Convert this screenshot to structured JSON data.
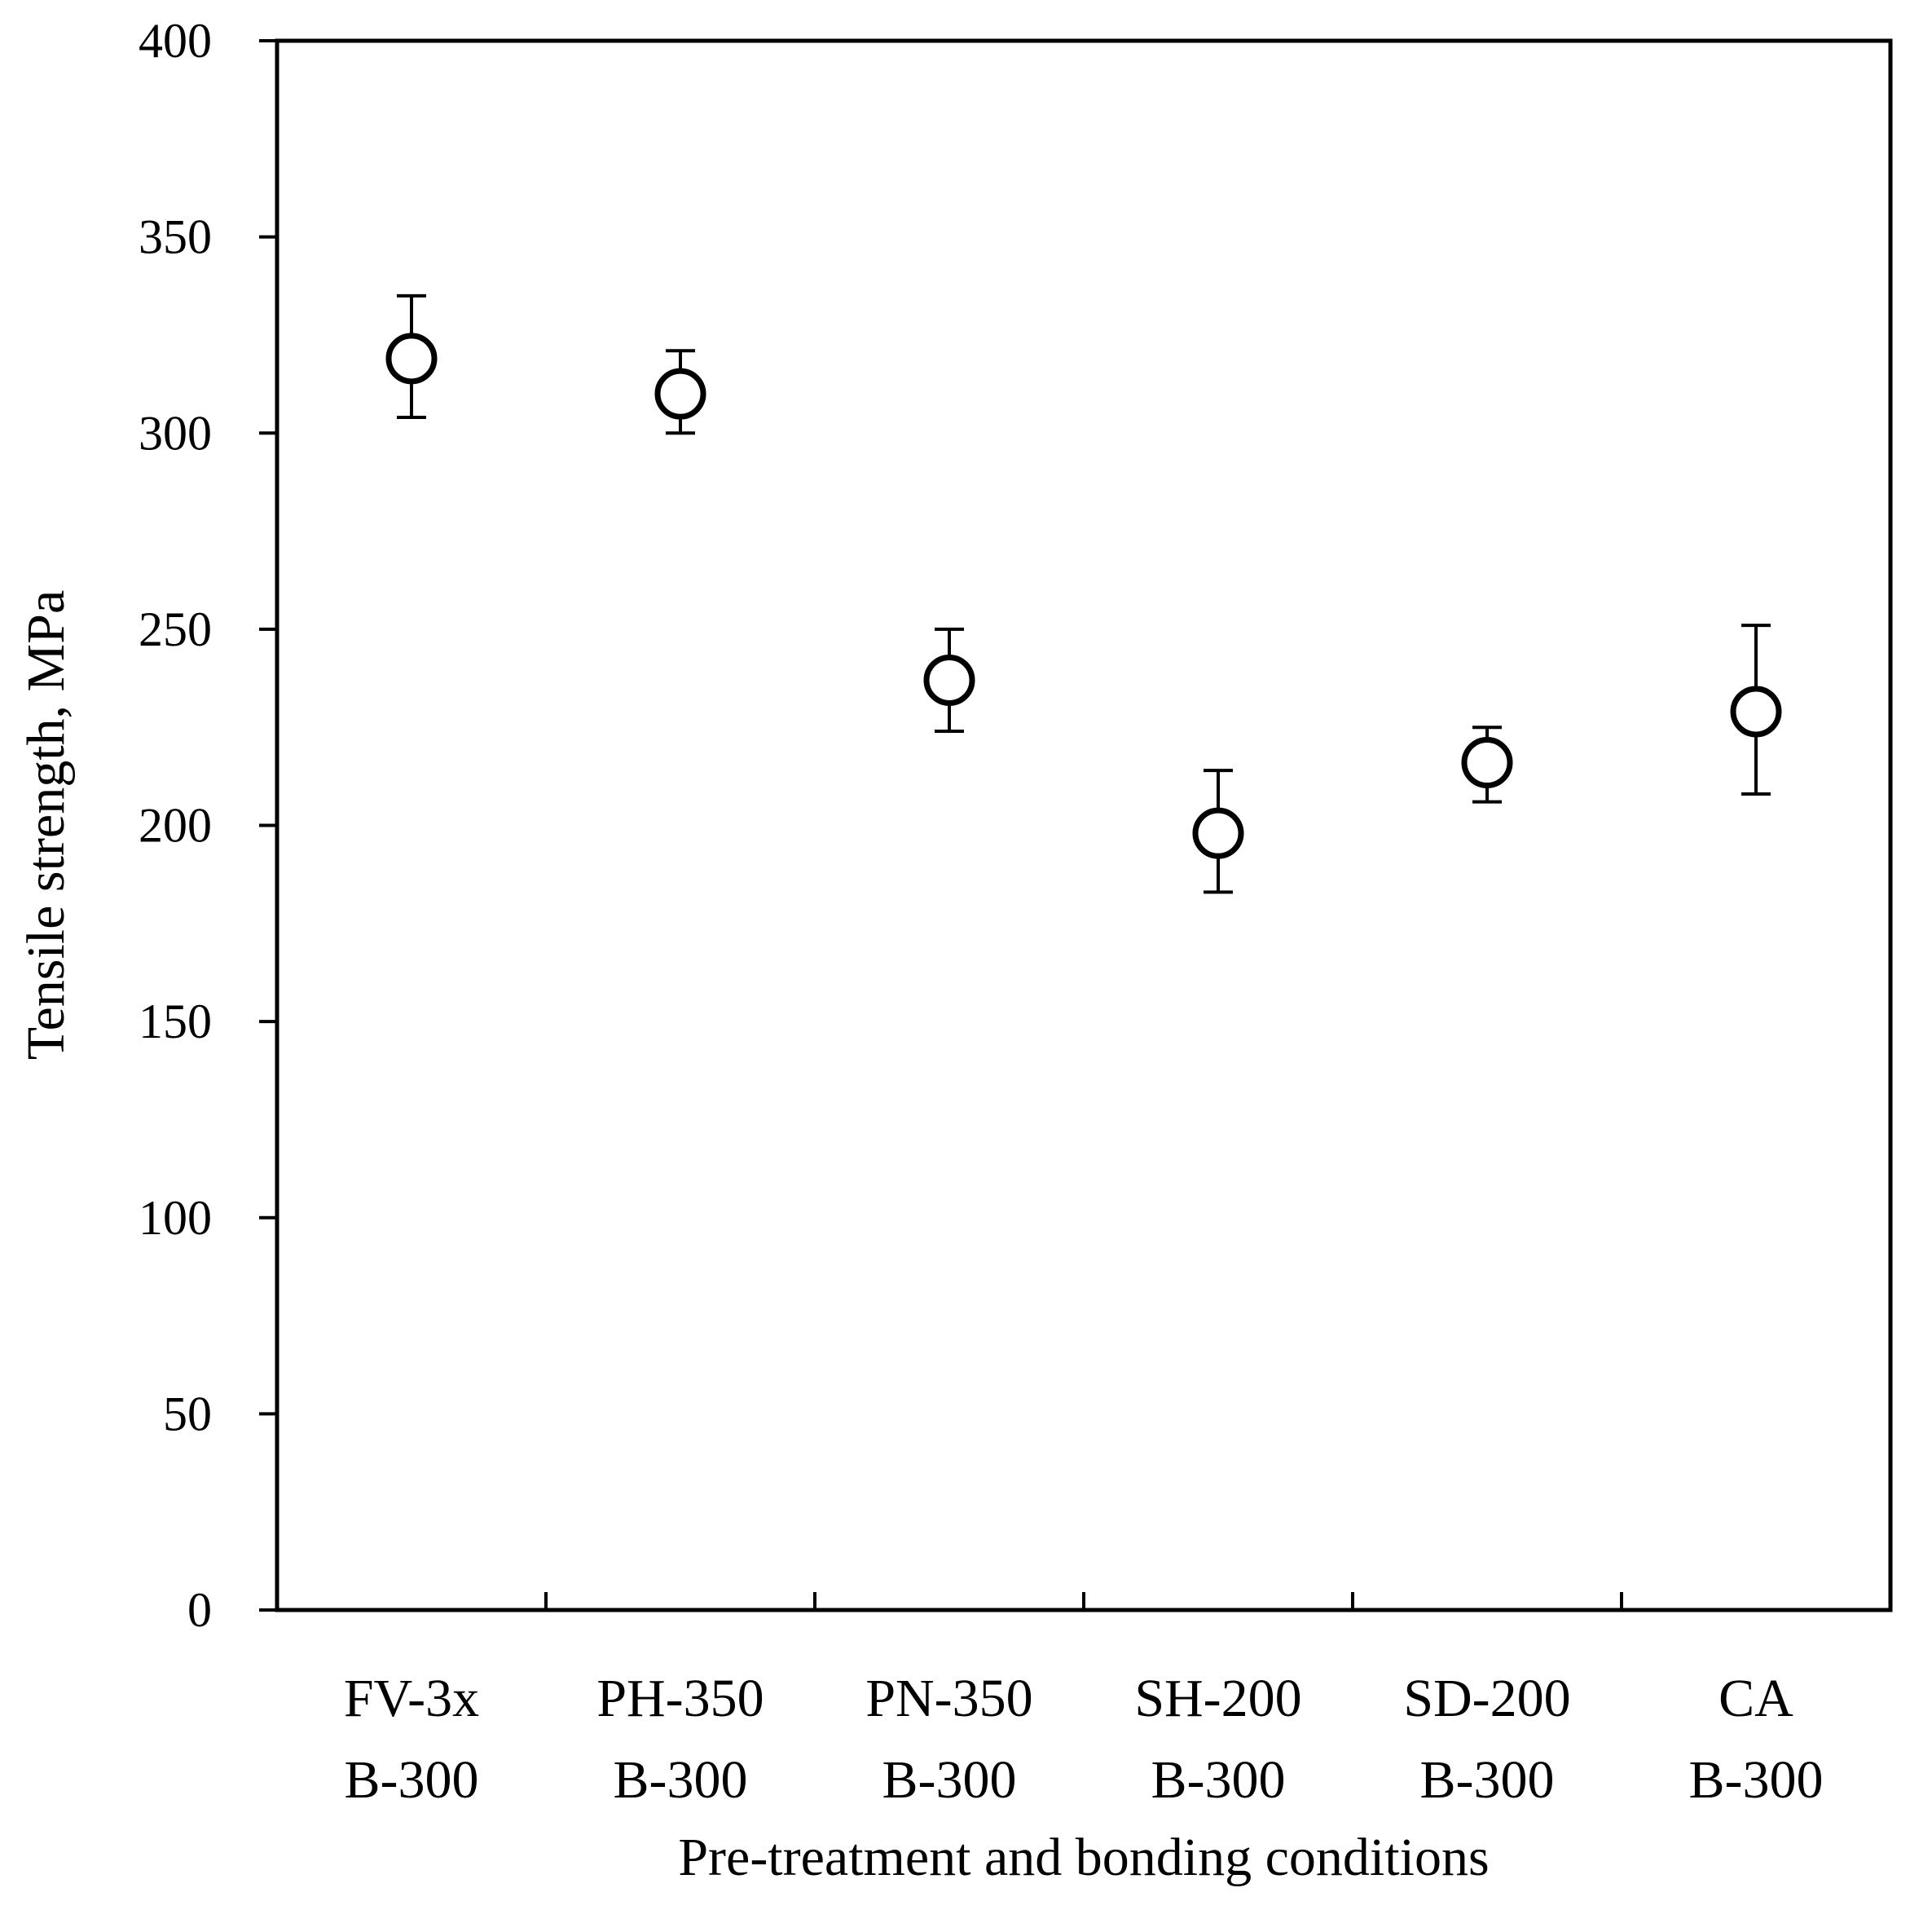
{
  "chart_data": {
    "type": "scatter",
    "title": "",
    "xlabel": "Pre-treatment and bonding conditions",
    "ylabel": "Tensile strength, MPa",
    "ylim": [
      0,
      400
    ],
    "yticks": [
      0,
      50,
      100,
      150,
      200,
      250,
      300,
      350,
      400
    ],
    "grid": false,
    "legend": "none",
    "categories": [
      {
        "line1": "FV-3x",
        "line2": "B-300"
      },
      {
        "line1": "PH-350",
        "line2": "B-300"
      },
      {
        "line1": "PN-350",
        "line2": "B-300"
      },
      {
        "line1": "SH-200",
        "line2": "B-300"
      },
      {
        "line1": "SD-200",
        "line2": "B-300"
      },
      {
        "line1": "CA",
        "line2": "B-300"
      }
    ],
    "series": [
      {
        "marker": "open-circle",
        "values": [
          319,
          310,
          237,
          198,
          216,
          229
        ],
        "err_low": [
          304,
          300,
          224,
          183,
          206,
          208
        ],
        "err_high": [
          335,
          321,
          250,
          214,
          225,
          251
        ]
      }
    ],
    "colors": {
      "marker": "#000000",
      "axis": "#000000",
      "background": "#ffffff"
    }
  }
}
